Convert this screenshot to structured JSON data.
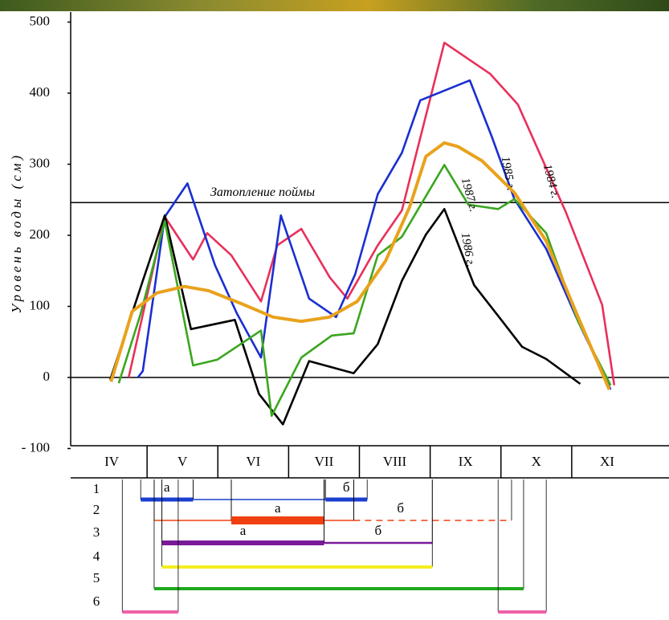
{
  "chart_data": {
    "type": "line",
    "y_label": "Уровень воды (см)",
    "reference_line": {
      "value": 246,
      "label": "Затопление поймы"
    },
    "categories": [
      "IV",
      "V",
      "VI",
      "VII",
      "VIII",
      "IX",
      "X",
      "XI"
    ],
    "xlim": [
      0,
      8
    ],
    "ylim": [
      -100,
      500
    ],
    "yticks": [
      {
        "value": -100,
        "label": "- 100"
      },
      0,
      100,
      200,
      300,
      400,
      500
    ],
    "series": [
      {
        "name": "1984 г.",
        "color": "#e8305a",
        "x": [
          0.74,
          1.25,
          1.65,
          1.85,
          2.19,
          2.61,
          2.84,
          3.18,
          3.58,
          3.83,
          4.26,
          4.6,
          5.2,
          5.85,
          6.24,
          6.92,
          7.43,
          7.6
        ],
        "values": [
          0,
          226,
          166,
          203,
          172,
          107,
          186,
          209,
          141,
          111,
          186,
          235,
          471,
          427,
          384,
          232,
          102,
          -11
        ]
      },
      {
        "name": "1985 г.",
        "color": "#1a2fd0",
        "x": [
          0.87,
          0.94,
          1.25,
          1.57,
          1.96,
          2.27,
          2.61,
          2.89,
          3.29,
          3.67,
          3.94,
          4.26,
          4.6,
          4.86,
          5.56,
          5.87,
          6.19,
          6.64,
          7.09,
          7.55
        ],
        "values": [
          0,
          9,
          226,
          273,
          158,
          90,
          28,
          228,
          111,
          85,
          145,
          258,
          316,
          390,
          418,
          339,
          251,
          181,
          79,
          -17
        ]
      },
      {
        "name": "1986 г.",
        "color": "#000000",
        "x": [
          0.48,
          0.94,
          1.25,
          1.62,
          2.24,
          2.58,
          2.92,
          3.29,
          3.92,
          4.26,
          4.6,
          4.94,
          5.2,
          5.62,
          6.02,
          6.3,
          6.64,
          7.12
        ],
        "values": [
          -3,
          136,
          228,
          68,
          81,
          -23,
          -66,
          23,
          6,
          47,
          136,
          201,
          237,
          130,
          79,
          43,
          26,
          -9
        ]
      },
      {
        "name": "1987 г.",
        "color": "#3aa61e",
        "x": [
          0.6,
          0.91,
          1.25,
          1.65,
          1.99,
          2.61,
          2.76,
          3.18,
          3.61,
          3.92,
          4.26,
          4.6,
          5.2,
          5.54,
          5.96,
          6.19,
          6.64,
          7.09,
          7.55
        ],
        "values": [
          -8,
          90,
          220,
          17,
          25,
          66,
          -54,
          28,
          59,
          62,
          172,
          198,
          299,
          243,
          237,
          251,
          203,
          79,
          -11
        ]
      },
      {
        "color": "#e8a21c",
        "x": [
          0.49,
          0.79,
          1.14,
          1.53,
          1.87,
          2.33,
          2.78,
          3.18,
          3.58,
          3.97,
          4.37,
          4.71,
          4.94,
          5.2,
          5.39,
          5.73,
          6.19,
          6.64,
          7.09,
          7.53
        ],
        "values": [
          -6,
          93,
          119,
          128,
          122,
          104,
          85,
          79,
          85,
          107,
          164,
          240,
          311,
          330,
          325,
          305,
          260,
          192,
          85,
          -17
        ]
      }
    ]
  },
  "phenology": {
    "rows": [
      {
        "label": "1",
        "color": "#1a3fd0",
        "segments": [
          {
            "x": [
              0.91,
              1.65
            ],
            "width": 5,
            "label": "а"
          },
          {
            "x": [
              1.65,
              3.52
            ],
            "width": 1.5
          },
          {
            "x": [
              3.52,
              4.11
            ],
            "width": 5,
            "label": "б"
          }
        ]
      },
      {
        "label": "2",
        "color": "#f04010",
        "segments": [
          {
            "x": [
              1.1,
              2.19
            ],
            "width": 1.5
          },
          {
            "x": [
              2.19,
              3.5
            ],
            "width": 10,
            "label": "а"
          },
          {
            "x": [
              3.5,
              3.92
            ],
            "width": 1.5
          },
          {
            "x": [
              3.92,
              6.15
            ],
            "width": 1.5,
            "dashed": true,
            "label": "б"
          }
        ]
      },
      {
        "label": "3",
        "color": "#7a1a9a",
        "segments": [
          {
            "x": [
              1.21,
              3.5
            ],
            "width": 6,
            "label": "а"
          },
          {
            "x": [
              3.5,
              5.03
            ],
            "width": 2.5,
            "label": "б"
          }
        ]
      },
      {
        "label": "4",
        "color": "#f4ee20",
        "segments": [
          {
            "x": [
              1.21,
              5.03
            ],
            "width": 4
          }
        ]
      },
      {
        "label": "5",
        "color": "#1da81d",
        "segments": [
          {
            "x": [
              1.1,
              6.32
            ],
            "width": 4
          }
        ]
      },
      {
        "label": "6",
        "color": "#f060a8",
        "segments": [
          {
            "x": [
              0.65,
              1.44
            ],
            "width": 4
          },
          {
            "x": [
              5.96,
              6.64
            ],
            "width": 4
          }
        ]
      }
    ]
  }
}
